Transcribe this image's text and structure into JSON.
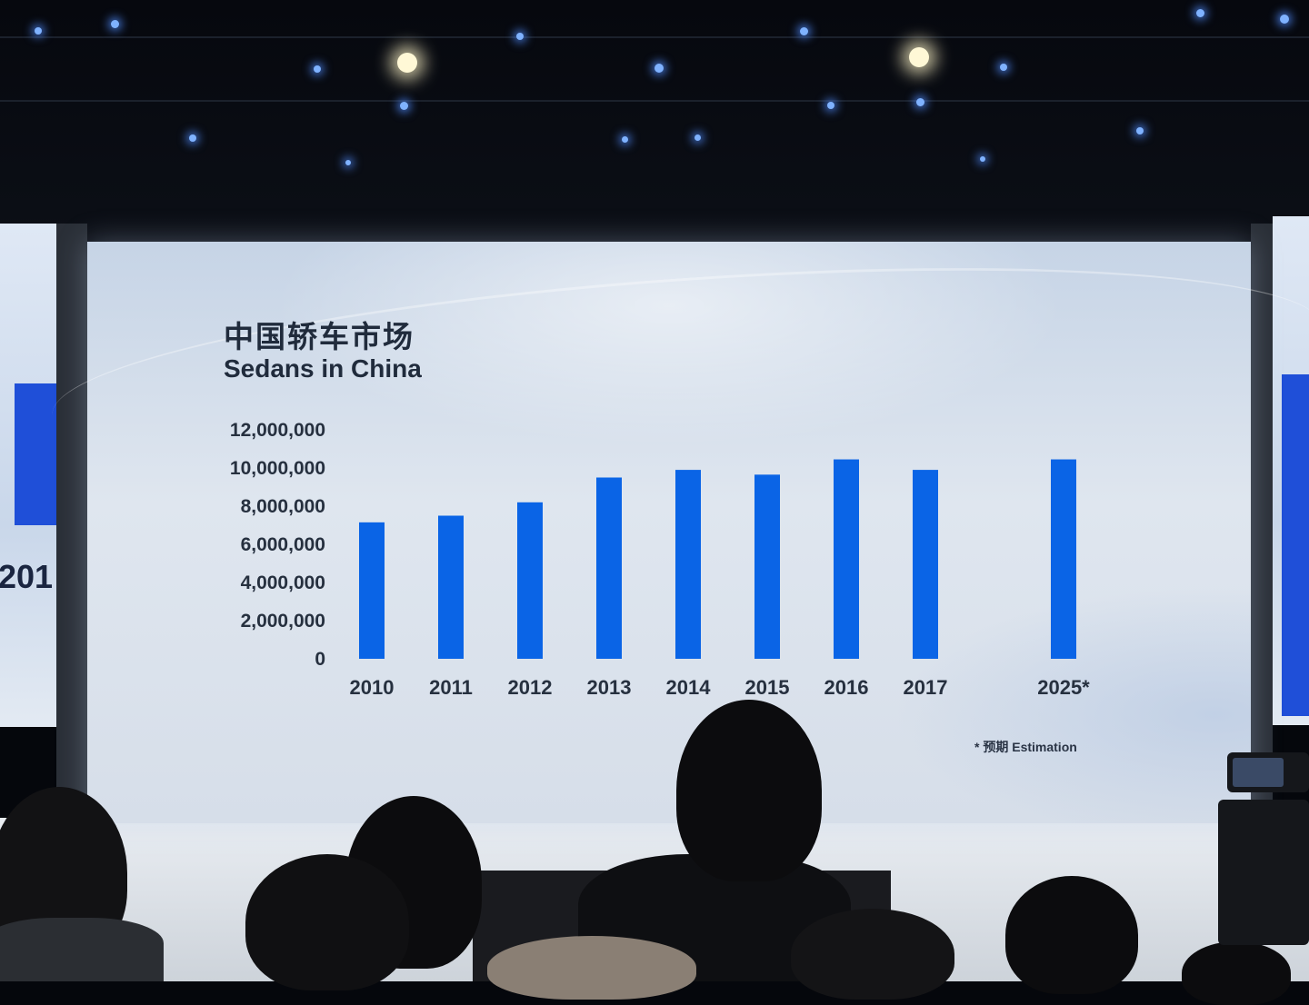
{
  "slide": {
    "title_cn": "中国轿车市场",
    "title_en": "Sedans in China",
    "footnote": "*  预期  Estimation"
  },
  "side_screen_left": {
    "partial_text": "201"
  },
  "chart_data": {
    "type": "bar",
    "title": "中国轿车市场 Sedans in China",
    "categories": [
      "2010",
      "2011",
      "2012",
      "2013",
      "2014",
      "2015",
      "2016",
      "2017",
      "2025*"
    ],
    "values": [
      7150000,
      7500000,
      8200000,
      9500000,
      9900000,
      9650000,
      10450000,
      9900000,
      10450000
    ],
    "ylim": [
      0,
      12000000
    ],
    "yticks": [
      "0",
      "2,000,000",
      "4,000,000",
      "6,000,000",
      "8,000,000",
      "10,000,000",
      "12,000,000"
    ],
    "ytick_values": [
      0,
      2000000,
      4000000,
      6000000,
      8000000,
      10000000,
      12000000
    ],
    "bar_color": "#0a64e6",
    "grid": false,
    "xlabel": "",
    "ylabel": ""
  },
  "colors": {
    "screen_bg": "#d8e1ec",
    "bar": "#0a64e6",
    "text": "#202b3c"
  }
}
